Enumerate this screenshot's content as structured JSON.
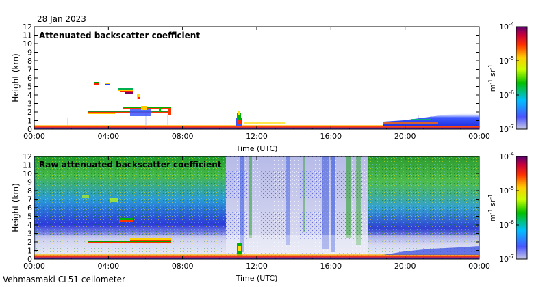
{
  "header": {
    "date": "28 Jan 2023"
  },
  "footer": {
    "site_label": "Vehmasmaki CL51 ceilometer"
  },
  "colors": {
    "frame": "#000000",
    "background": "#ffffff",
    "nodata": "#c9cbe6"
  },
  "chart_data": [
    {
      "type": "heatmap",
      "title": "Attenuated backscatter coefficient",
      "xlabel": "Time (UTC)",
      "ylabel": "Height (km)",
      "xlim": [
        0,
        24
      ],
      "ylim": [
        0,
        12
      ],
      "x_ticks": [
        "00:00",
        "04:00",
        "08:00",
        "12:00",
        "16:00",
        "20:00",
        "00:00"
      ],
      "y_ticks": [
        "0",
        "1",
        "2",
        "3",
        "4",
        "5",
        "6",
        "7",
        "8",
        "9",
        "10",
        "11",
        "12"
      ],
      "colorbar": {
        "label": "m-1 sr-1",
        "scale": "log",
        "min": 1e-07,
        "max": 0.0001,
        "tick_labels": [
          "10-7",
          "10-6",
          "10-5",
          "10-4"
        ]
      },
      "features": [
        {
          "kind": "surface_layer",
          "t_start": 0,
          "t_end": 24,
          "h_top": 0.3
        },
        {
          "kind": "cloud_layer",
          "t_start": 3.8,
          "t_end": 4.9,
          "h": 5.3
        },
        {
          "kind": "cloud_layer",
          "t_start": 4.4,
          "t_end": 5.6,
          "h": 4.5
        },
        {
          "kind": "cloud_layer",
          "t_start": 3.0,
          "t_end": 7.2,
          "h": 2.0
        },
        {
          "kind": "plume",
          "t_start": 10.9,
          "t_end": 11.3,
          "h_top": 2.0
        },
        {
          "kind": "boundary_layer",
          "t_start": 19.0,
          "t_end": 24.0,
          "h_top": 1.2
        }
      ]
    },
    {
      "type": "heatmap",
      "title": "Raw attenuated backscatter coefficient",
      "xlabel": "Time (UTC)",
      "ylabel": "Height (km)",
      "xlim": [
        0,
        24
      ],
      "ylim": [
        0,
        12
      ],
      "x_ticks": [
        "00:00",
        "04:00",
        "08:00",
        "12:00",
        "16:00",
        "20:00",
        "00:00"
      ],
      "y_ticks": [
        "0",
        "1",
        "2",
        "3",
        "4",
        "5",
        "6",
        "7",
        "8",
        "9",
        "10",
        "11",
        "12"
      ],
      "colorbar": {
        "label": "m-1 sr-1",
        "scale": "log",
        "min": 1e-07,
        "max": 0.0001,
        "tick_labels": [
          "10-7",
          "10-6",
          "10-5",
          "10-4"
        ]
      },
      "features": [
        {
          "kind": "noise_background",
          "t_start": 0,
          "t_end": 10.4,
          "level": "green"
        },
        {
          "kind": "noise_background",
          "t_start": 18.5,
          "t_end": 24.0,
          "level": "green"
        },
        {
          "kind": "low_noise_gap",
          "t_start": 10.4,
          "t_end": 17.5
        },
        {
          "kind": "cloud_layer",
          "t_start": 4.3,
          "t_end": 5.0,
          "h": 4.5
        },
        {
          "kind": "cloud_layer",
          "t_start": 3.0,
          "t_end": 7.2,
          "h": 2.0
        },
        {
          "kind": "surface_layer",
          "t_start": 0,
          "t_end": 24,
          "h_top": 0.3
        }
      ]
    }
  ]
}
